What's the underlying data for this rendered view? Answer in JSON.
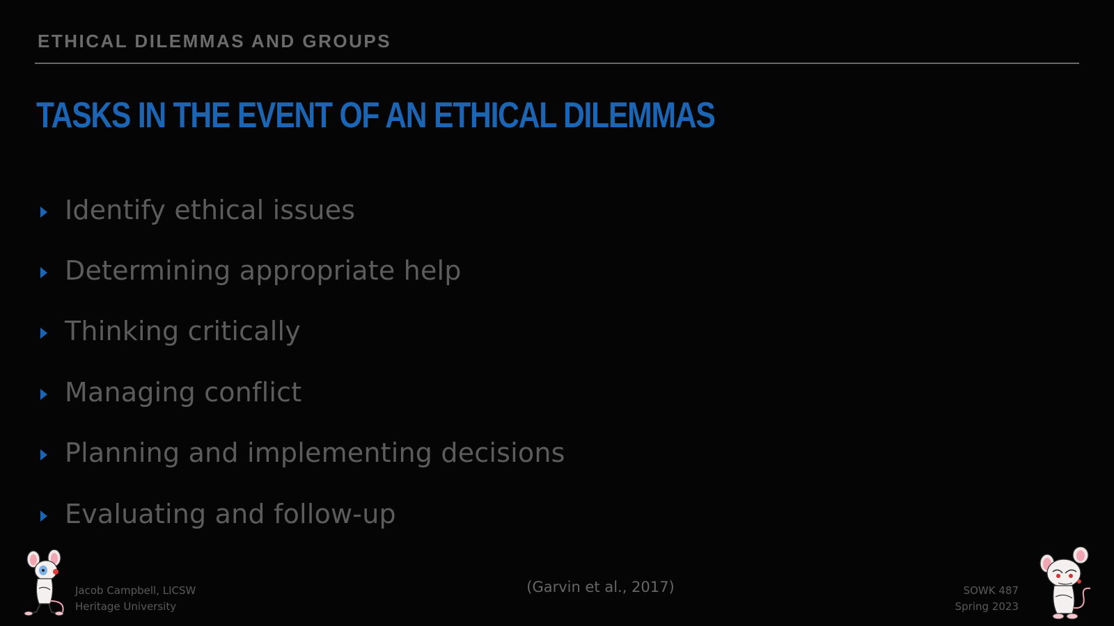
{
  "header": {
    "section_title": "ETHICAL DILEMMAS AND GROUPS",
    "slide_title": "TASKS IN THE EVENT OF AN ETHICAL DILEMMAS"
  },
  "bullets": [
    "Identify ethical issues",
    "Determining appropriate help",
    "Thinking critically",
    "Managing conflict",
    "Planning and implementing decisions",
    "Evaluating and follow-up"
  ],
  "footer": {
    "author": "Jacob Campbell, LICSW",
    "institution": "Heritage University",
    "citation": "(Garvin et al., 2017)",
    "course": "SOWK 487",
    "term": "Spring 2023"
  },
  "colors": {
    "background": "#050505",
    "accent": "#1b65b4",
    "text": "#5c5c5c"
  },
  "icons": {
    "left_mascot": "pinky-mouse-icon",
    "right_mascot": "brain-mouse-icon",
    "bullet": "triangle-right-icon"
  }
}
